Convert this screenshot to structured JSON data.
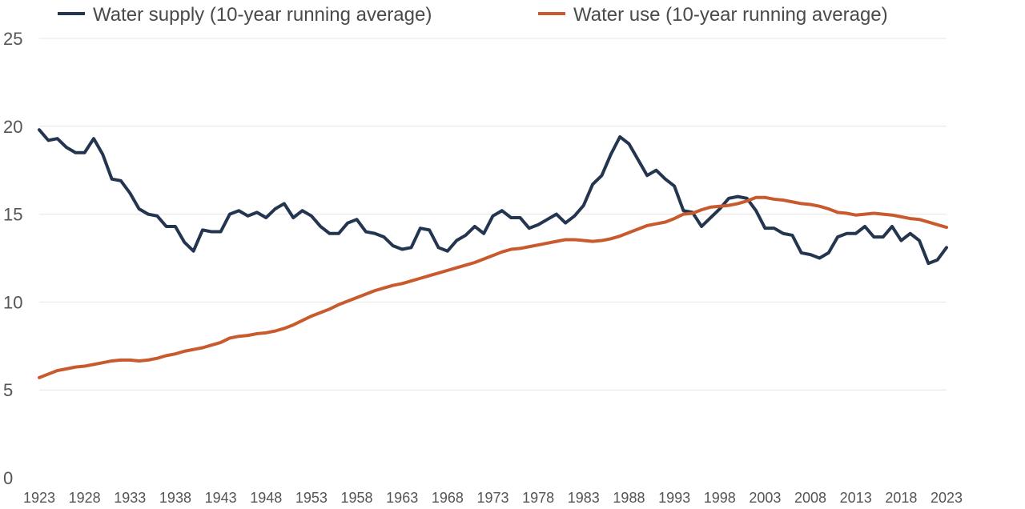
{
  "chart_data": {
    "type": "line",
    "title": "",
    "xlabel": "",
    "ylabel": "",
    "ylim": [
      0,
      25
    ],
    "xlim": [
      1923,
      2023
    ],
    "yticks": [
      "0",
      "5",
      "10",
      "15",
      "20",
      "25"
    ],
    "xticks": [
      "1923",
      "1928",
      "1933",
      "1938",
      "1943",
      "1948",
      "1953",
      "1958",
      "1963",
      "1968",
      "1973",
      "1978",
      "1983",
      "1988",
      "1993",
      "1998",
      "2003",
      "2008",
      "2013",
      "2018",
      "2023"
    ],
    "grid": true,
    "legend_position": "top",
    "x": [
      1923,
      1924,
      1925,
      1926,
      1927,
      1928,
      1929,
      1930,
      1931,
      1932,
      1933,
      1934,
      1935,
      1936,
      1937,
      1938,
      1939,
      1940,
      1941,
      1942,
      1943,
      1944,
      1945,
      1946,
      1947,
      1948,
      1949,
      1950,
      1951,
      1952,
      1953,
      1954,
      1955,
      1956,
      1957,
      1958,
      1959,
      1960,
      1961,
      1962,
      1963,
      1964,
      1965,
      1966,
      1967,
      1968,
      1969,
      1970,
      1971,
      1972,
      1973,
      1974,
      1975,
      1976,
      1977,
      1978,
      1979,
      1980,
      1981,
      1982,
      1983,
      1984,
      1985,
      1986,
      1987,
      1988,
      1989,
      1990,
      1991,
      1992,
      1993,
      1994,
      1995,
      1996,
      1997,
      1998,
      1999,
      2000,
      2001,
      2002,
      2003,
      2004,
      2005,
      2006,
      2007,
      2008,
      2009,
      2010,
      2011,
      2012,
      2013,
      2014,
      2015,
      2016,
      2017,
      2018,
      2019,
      2020,
      2021,
      2022,
      2023
    ],
    "series": [
      {
        "name": "Water supply (10-year running average)",
        "color": "#243550",
        "values": [
          19.8,
          19.2,
          19.3,
          18.8,
          18.5,
          18.5,
          19.3,
          18.4,
          17.0,
          16.9,
          16.2,
          15.3,
          15.0,
          14.9,
          14.3,
          14.3,
          13.4,
          12.9,
          14.1,
          14.0,
          14.0,
          15.0,
          15.2,
          14.9,
          15.1,
          14.8,
          15.3,
          15.6,
          14.8,
          15.2,
          14.9,
          14.3,
          13.9,
          13.9,
          14.5,
          14.7,
          14.0,
          13.9,
          13.7,
          13.2,
          13.0,
          13.1,
          14.2,
          14.1,
          13.1,
          12.9,
          13.5,
          13.8,
          14.3,
          13.9,
          14.9,
          15.2,
          14.8,
          14.8,
          14.2,
          14.4,
          14.7,
          15.0,
          14.5,
          14.9,
          15.5,
          16.7,
          17.2,
          18.4,
          19.4,
          19.0,
          18.1,
          17.2,
          17.5,
          17.0,
          16.6,
          15.2,
          15.1,
          14.3,
          14.8,
          15.3,
          15.9,
          16.0,
          15.9,
          15.2,
          14.2,
          14.2,
          13.9,
          13.8,
          12.8,
          12.7,
          12.5,
          12.8,
          13.7,
          13.9,
          13.9,
          14.3,
          13.7,
          13.7,
          14.3,
          13.5,
          13.9,
          13.5,
          12.2,
          12.4,
          13.1
        ]
      },
      {
        "name": "Water use (10-year running average)",
        "color": "#c85a2e",
        "values": [
          5.7,
          5.9,
          6.1,
          6.2,
          6.3,
          6.35,
          6.45,
          6.55,
          6.65,
          6.7,
          6.7,
          6.65,
          6.7,
          6.8,
          6.95,
          7.05,
          7.2,
          7.3,
          7.4,
          7.55,
          7.7,
          7.95,
          8.05,
          8.1,
          8.2,
          8.25,
          8.35,
          8.5,
          8.7,
          8.95,
          9.2,
          9.4,
          9.6,
          9.85,
          10.05,
          10.25,
          10.45,
          10.65,
          10.8,
          10.95,
          11.05,
          11.2,
          11.35,
          11.5,
          11.65,
          11.8,
          11.95,
          12.1,
          12.25,
          12.45,
          12.65,
          12.85,
          13.0,
          13.05,
          13.15,
          13.25,
          13.35,
          13.45,
          13.55,
          13.55,
          13.5,
          13.45,
          13.5,
          13.6,
          13.75,
          13.95,
          14.15,
          14.35,
          14.45,
          14.55,
          14.75,
          15.0,
          15.05,
          15.25,
          15.4,
          15.45,
          15.5,
          15.6,
          15.75,
          15.95,
          15.95,
          15.85,
          15.8,
          15.7,
          15.6,
          15.55,
          15.45,
          15.3,
          15.1,
          15.05,
          14.95,
          15.0,
          15.05,
          15.0,
          14.95,
          14.85,
          14.75,
          14.7,
          14.55,
          14.4,
          14.25
        ]
      }
    ]
  }
}
